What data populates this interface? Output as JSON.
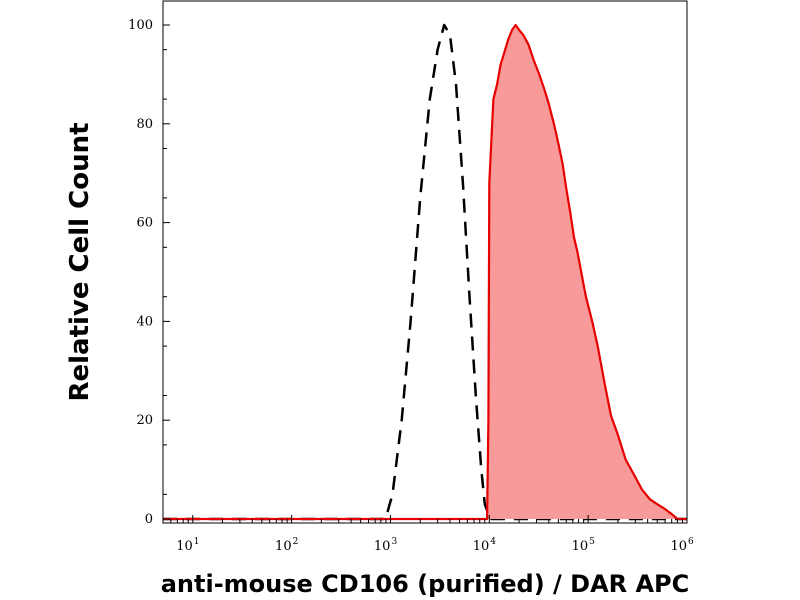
{
  "chart_data": {
    "type": "area",
    "title": "",
    "xlabel": "anti-mouse CD106 (purified) / DAR APC",
    "ylabel": "Relative Cell Count",
    "x_scale": "log",
    "xlim": [
      5,
      1000000
    ],
    "ylim": [
      0,
      100
    ],
    "x_ticks": [
      {
        "base": "10",
        "exp": "1",
        "value": 10
      },
      {
        "base": "10",
        "exp": "2",
        "value": 100
      },
      {
        "base": "10",
        "exp": "3",
        "value": 1000
      },
      {
        "base": "10",
        "exp": "4",
        "value": 10000
      },
      {
        "base": "10",
        "exp": "5",
        "value": 100000
      },
      {
        "base": "10",
        "exp": "6",
        "value": 1000000
      }
    ],
    "y_ticks": [
      {
        "label": "0",
        "value": 0
      },
      {
        "label": "20",
        "value": 20
      },
      {
        "label": "40",
        "value": 40
      },
      {
        "label": "60",
        "value": 60
      },
      {
        "label": "80",
        "value": 80
      },
      {
        "label": "100",
        "value": 100
      }
    ],
    "grid": false,
    "legend": "none",
    "series": [
      {
        "style": "dashed",
        "color": "#000000",
        "fill": "none",
        "points": [
          [
            5,
            0
          ],
          [
            900,
            0
          ],
          [
            950,
            2
          ],
          [
            1050,
            5
          ],
          [
            1300,
            20
          ],
          [
            1600,
            40
          ],
          [
            2000,
            65
          ],
          [
            2500,
            85
          ],
          [
            3000,
            95
          ],
          [
            3500,
            100
          ],
          [
            4000,
            98
          ],
          [
            4600,
            88
          ],
          [
            5400,
            68
          ],
          [
            6300,
            45
          ],
          [
            7300,
            25
          ],
          [
            8300,
            10
          ],
          [
            9000,
            3
          ],
          [
            9800,
            1
          ],
          [
            10500,
            0
          ],
          [
            30000,
            0
          ],
          [
            100000,
            0
          ],
          [
            1000000,
            0
          ]
        ]
      },
      {
        "style": "solid",
        "color": "#e60000",
        "fill": "#f99a9a",
        "points": [
          [
            5,
            0
          ],
          [
            9500,
            0
          ],
          [
            9800,
            20
          ],
          [
            10000,
            68
          ],
          [
            11000,
            85
          ],
          [
            12000,
            88
          ],
          [
            13000,
            92
          ],
          [
            14000,
            94
          ],
          [
            15500,
            97
          ],
          [
            17000,
            99
          ],
          [
            18500,
            100
          ],
          [
            20000,
            99
          ],
          [
            22000,
            98
          ],
          [
            25000,
            96
          ],
          [
            28000,
            93
          ],
          [
            32000,
            90
          ],
          [
            36000,
            87
          ],
          [
            40000,
            84
          ],
          [
            45000,
            80
          ],
          [
            50000,
            76
          ],
          [
            55000,
            72
          ],
          [
            60000,
            67
          ],
          [
            66000,
            62
          ],
          [
            72000,
            57
          ],
          [
            78000,
            54
          ],
          [
            85000,
            50
          ],
          [
            95000,
            45
          ],
          [
            110000,
            40
          ],
          [
            125000,
            35
          ],
          [
            145000,
            28
          ],
          [
            170000,
            21
          ],
          [
            200000,
            17
          ],
          [
            240000,
            12
          ],
          [
            290000,
            9
          ],
          [
            350000,
            6
          ],
          [
            420000,
            4
          ],
          [
            500000,
            3
          ],
          [
            600000,
            2
          ],
          [
            700000,
            1
          ],
          [
            800000,
            0
          ],
          [
            1000000,
            0
          ]
        ]
      }
    ]
  }
}
